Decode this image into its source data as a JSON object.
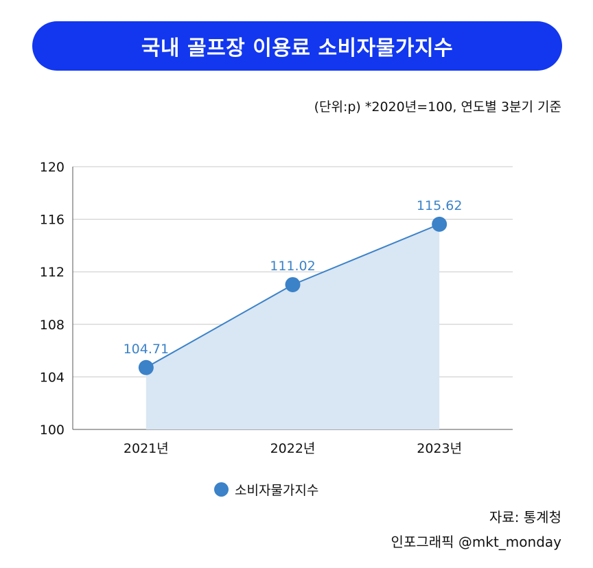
{
  "header": {
    "title": "국내 골프장 이용료 소비자물가지수"
  },
  "unit_note": "(단위:p) *2020년=100, 연도별 3분기 기준",
  "legend": {
    "label": "소비자물가지수"
  },
  "footer": {
    "source": "자료: 통계청",
    "credit": "인포그래픽 @mkt_monday"
  },
  "colors": {
    "title_bg": "#1237ef",
    "series": "#3b82c8",
    "area": "#d9e6f3",
    "grid": "#c8c8c8"
  },
  "chart_data": {
    "type": "area",
    "categories": [
      "2021년",
      "2022년",
      "2023년"
    ],
    "series": [
      {
        "name": "소비자물가지수",
        "values": [
          104.71,
          111.02,
          115.62
        ],
        "labels": [
          "104.71",
          "111.02",
          "115.62"
        ]
      }
    ],
    "ylim": [
      100,
      120
    ],
    "yticks": [
      100,
      104,
      108,
      112,
      116,
      120
    ],
    "grid": true,
    "legend_position": "bottom"
  }
}
